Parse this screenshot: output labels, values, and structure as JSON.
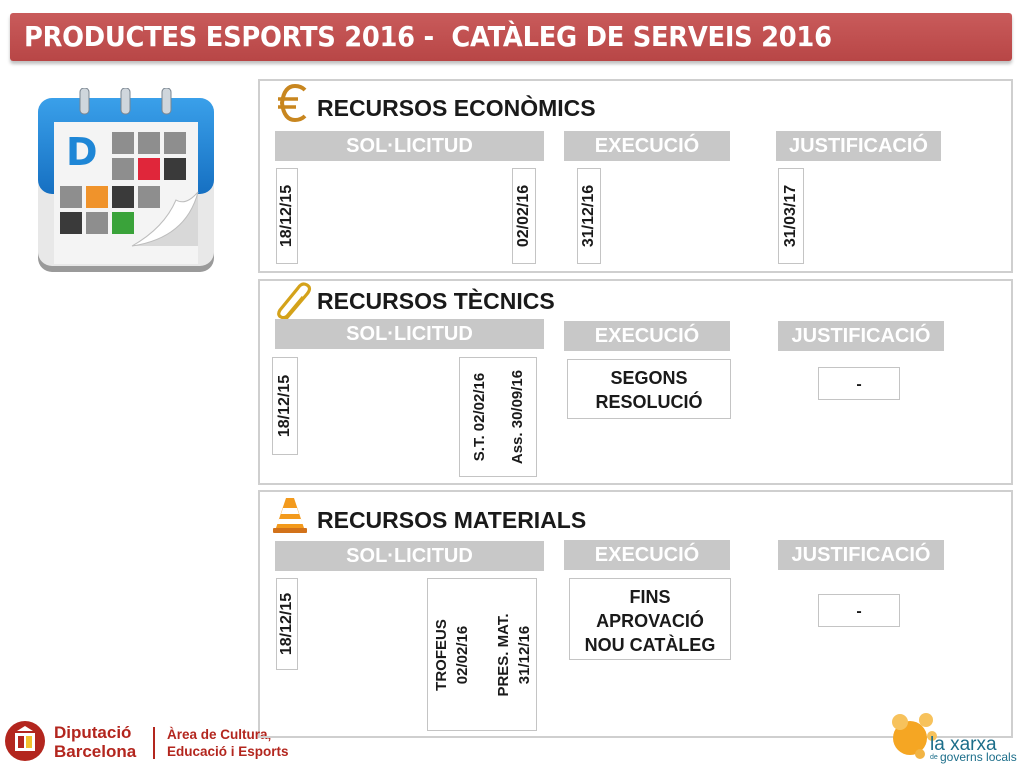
{
  "header": {
    "title": "PRODUCTES ESPORTS 2016 -  CATÀLEG DE SERVEIS 2016"
  },
  "calendar": {
    "letter": "D"
  },
  "phases": {
    "sol": "SOL·LICITUD",
    "exec": "EXECUCIÓ",
    "just": "JUSTIFICACIÓ"
  },
  "economics": {
    "title": "RECURSOS ECONÒMICS",
    "icon": "euro-icon",
    "sol_start": "18/12/15",
    "sol_end": "02/02/16",
    "exec": "31/12/16",
    "just": "31/03/17"
  },
  "technical": {
    "title": "RECURSOS TÈCNICS",
    "icon": "paperclip-icon",
    "sol_start": "18/12/15",
    "sol_st": "S.T. 02/02/16",
    "sol_ass": "Ass. 30/09/16",
    "exec_line1": "SEGONS",
    "exec_line2": "RESOLUCIÓ",
    "just": "-"
  },
  "materials": {
    "title": "RECURSOS MATERIALS",
    "icon": "traffic-cone-icon",
    "sol_start": "18/12/15",
    "trofeus_1": "TROFEUS",
    "trofeus_2": "02/02/16",
    "pres_1": "PRES. MAT.",
    "pres_2": "31/12/16",
    "exec_line1": "FINS",
    "exec_line2": "APROVACIÓ",
    "exec_line3": "NOU CATÀLEG",
    "just": "-"
  },
  "footer": {
    "dipu_line1": "Diputació",
    "dipu_line2": "Barcelona",
    "area_line1": "Àrea de Cultura,",
    "area_line2": "Educació i Esports",
    "xarxa_main": "la xarxa",
    "xarxa_de": "de",
    "xarxa_sub": "governs locals"
  },
  "colors": {
    "banner": "#b84646",
    "phase_bg": "#c8c8c8",
    "brand_red": "#b3261e",
    "xarxa_orange": "#f5a623",
    "calendar_blue": "#1e86d6"
  }
}
